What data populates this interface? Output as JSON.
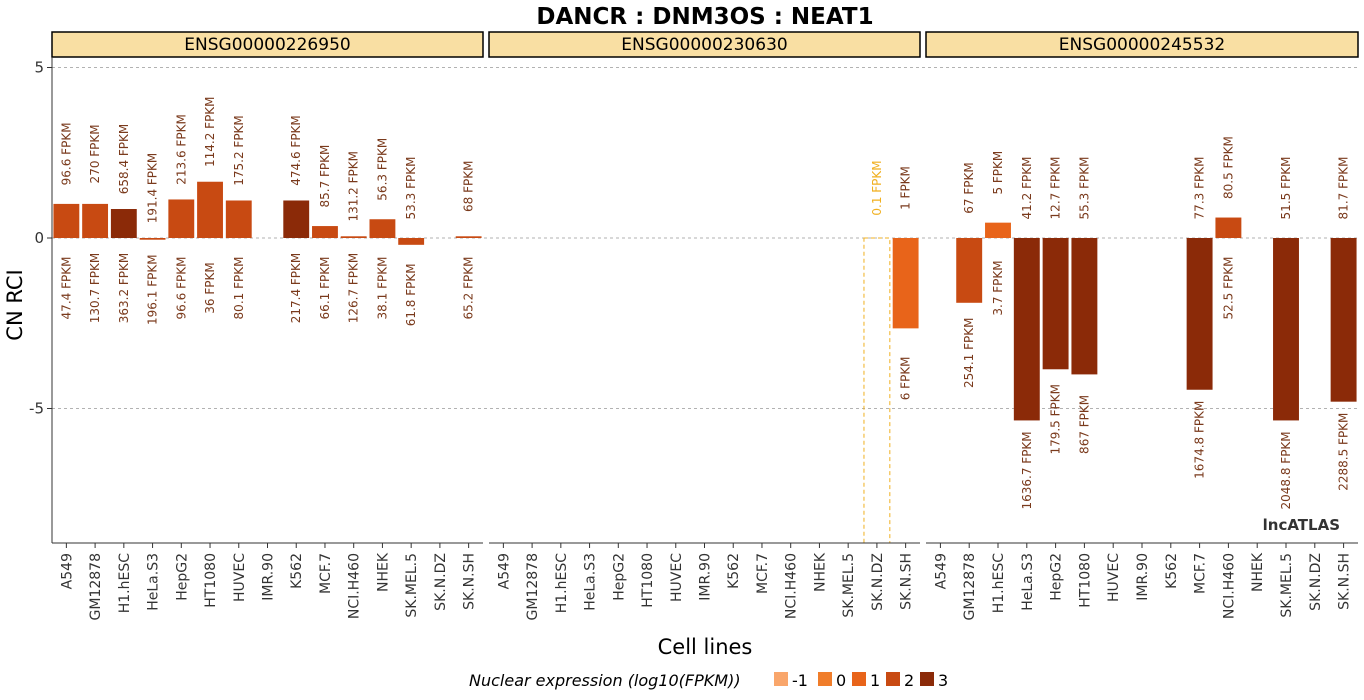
{
  "chart_data": {
    "type": "bar",
    "title": "DANCR : DNM3OS : NEAT1",
    "xlabel": "Cell lines",
    "ylabel": "CN RCI",
    "ylim": [
      -9,
      6
    ],
    "yticks": [
      5,
      0,
      -5
    ],
    "grid": "dashed horizontal at ticks",
    "categories": [
      "A549",
      "GM12878",
      "H1.hESC",
      "HeLa.S3",
      "HepG2",
      "HT1080",
      "HUVEC",
      "IMR.90",
      "K562",
      "MCF.7",
      "NCI.H460",
      "NHEK",
      "SK.MEL.5",
      "SK.N.DZ",
      "SK.N.SH"
    ],
    "panels": [
      {
        "name": "ENSG00000226950",
        "values": [
          1.0,
          1.0,
          0.85,
          -0.05,
          1.13,
          1.65,
          1.1,
          null,
          1.1,
          0.35,
          0.05,
          0.55,
          -0.2,
          null,
          0.05
        ],
        "levels": [
          2,
          2,
          3,
          2,
          2,
          2,
          2,
          null,
          3,
          2,
          2,
          2,
          2,
          null,
          2
        ],
        "top_labels": [
          "96.6 FPKM",
          "270 FPKM",
          "658.4 FPKM",
          "191.4 FPKM",
          "213.6 FPKM",
          "114.2 FPKM",
          "175.2 FPKM",
          null,
          "474.6 FPKM",
          "85.7 FPKM",
          "131.2 FPKM",
          "56.3 FPKM",
          "53.3 FPKM",
          null,
          "68 FPKM"
        ],
        "bottom_labels": [
          "47.4 FPKM",
          "130.7 FPKM",
          "363.2 FPKM",
          "196.1 FPKM",
          "96.6 FPKM",
          "36 FPKM",
          "80.1 FPKM",
          null,
          "217.4 FPKM",
          "66.1 FPKM",
          "126.7 FPKM",
          "38.1 FPKM",
          "61.8 FPKM",
          null,
          "65.2 FPKM"
        ]
      },
      {
        "name": "ENSG00000230630",
        "values": [
          null,
          null,
          null,
          null,
          null,
          null,
          null,
          null,
          null,
          null,
          null,
          null,
          null,
          -9,
          -2.65
        ],
        "levels": [
          null,
          null,
          null,
          null,
          null,
          null,
          null,
          null,
          null,
          null,
          null,
          null,
          null,
          -1,
          1
        ],
        "top_labels": [
          null,
          null,
          null,
          null,
          null,
          null,
          null,
          null,
          null,
          null,
          null,
          null,
          null,
          "0.1 FPKM",
          "1 FPKM"
        ],
        "bottom_labels": [
          null,
          null,
          null,
          null,
          null,
          null,
          null,
          null,
          null,
          null,
          null,
          null,
          null,
          null,
          "6 FPKM"
        ]
      },
      {
        "name": "ENSG00000245532",
        "values": [
          null,
          -1.9,
          0.45,
          -5.35,
          -3.85,
          -4.0,
          null,
          null,
          null,
          -4.45,
          0.6,
          null,
          -5.35,
          null,
          -4.8
        ],
        "levels": [
          null,
          2,
          1,
          3,
          3,
          3,
          null,
          null,
          null,
          3,
          2,
          null,
          3,
          null,
          3
        ],
        "top_labels": [
          null,
          "67 FPKM",
          "5 FPKM",
          "41.2 FPKM",
          "12.7 FPKM",
          "55.3 FPKM",
          null,
          null,
          null,
          "77.3 FPKM",
          "80.5 FPKM",
          null,
          "51.5 FPKM",
          null,
          "81.7 FPKM"
        ],
        "bottom_labels": [
          null,
          "254.1 FPKM",
          "3.7 FPKM",
          "1636.7 FPKM",
          "179.5 FPKM",
          "867 FPKM",
          null,
          null,
          null,
          "1674.8 FPKM",
          "52.5 FPKM",
          null,
          "2048.8 FPKM",
          null,
          "2288.5 FPKM"
        ]
      }
    ],
    "legend": {
      "title": "Nuclear expression (log10(FPKM))",
      "placement": "bottom",
      "entries": [
        {
          "label": "-1",
          "color": "#f9a66b"
        },
        {
          "label": "0",
          "color": "#f07d2a"
        },
        {
          "label": "1",
          "color": "#e8641a"
        },
        {
          "label": "2",
          "color": "#c84a12"
        },
        {
          "label": "3",
          "color": "#8b2a08"
        }
      ]
    },
    "dashed_bar_color": "#f0b020",
    "label_color": "#7a3a1c",
    "watermark": "lncATLAS"
  }
}
